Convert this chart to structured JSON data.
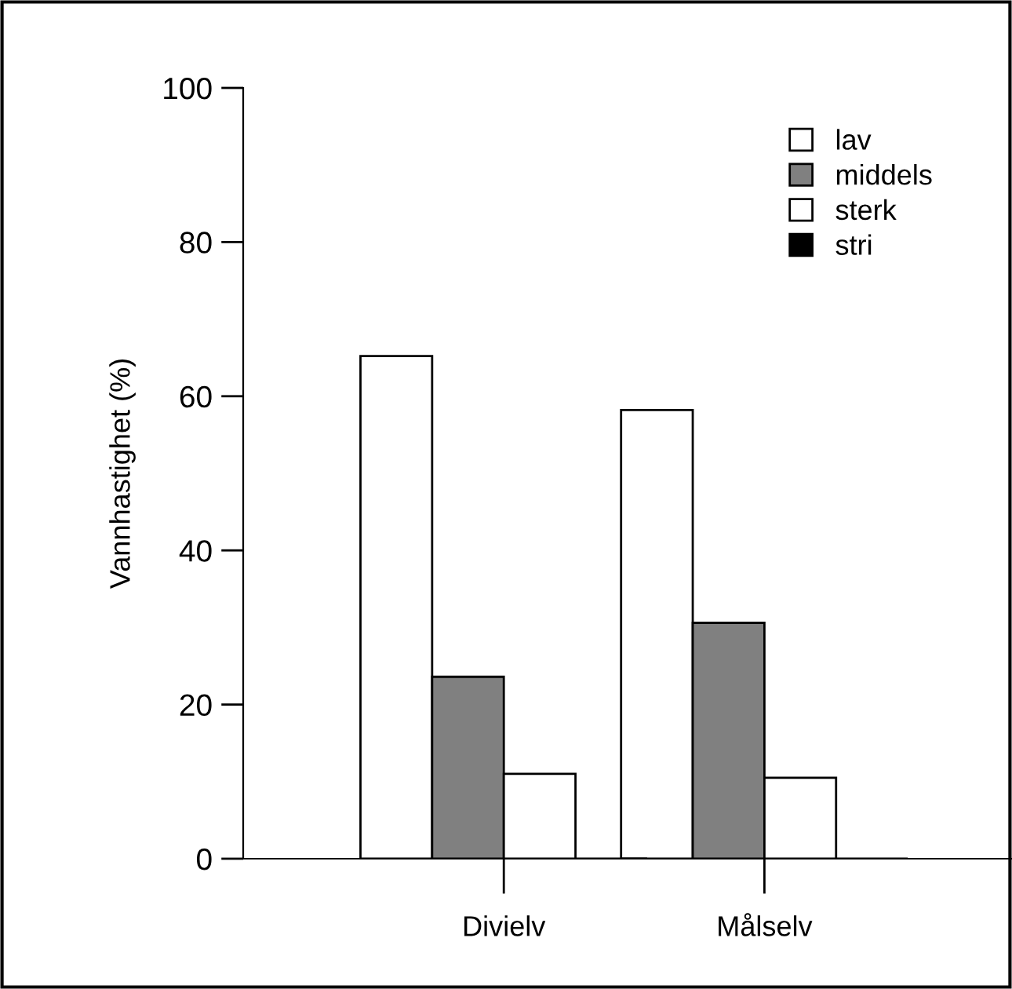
{
  "chart_data": {
    "type": "bar",
    "ylabel": "Vannhastighet (%)",
    "categories": [
      "Divielv",
      "Målselv"
    ],
    "series": [
      {
        "name": "lav",
        "color": "#ffffff",
        "values": [
          65.2,
          58.2
        ]
      },
      {
        "name": "middels",
        "color": "#808080",
        "values": [
          23.6,
          30.6
        ]
      },
      {
        "name": "sterk",
        "color": "#ffffff",
        "values": [
          11.0,
          10.5
        ]
      },
      {
        "name": "stri",
        "color": "#000000",
        "values": [
          0,
          0
        ]
      }
    ],
    "ylim": [
      0,
      100
    ],
    "yticks": [
      0,
      20,
      40,
      60,
      80,
      100
    ],
    "grid": false,
    "legend": "top right"
  }
}
